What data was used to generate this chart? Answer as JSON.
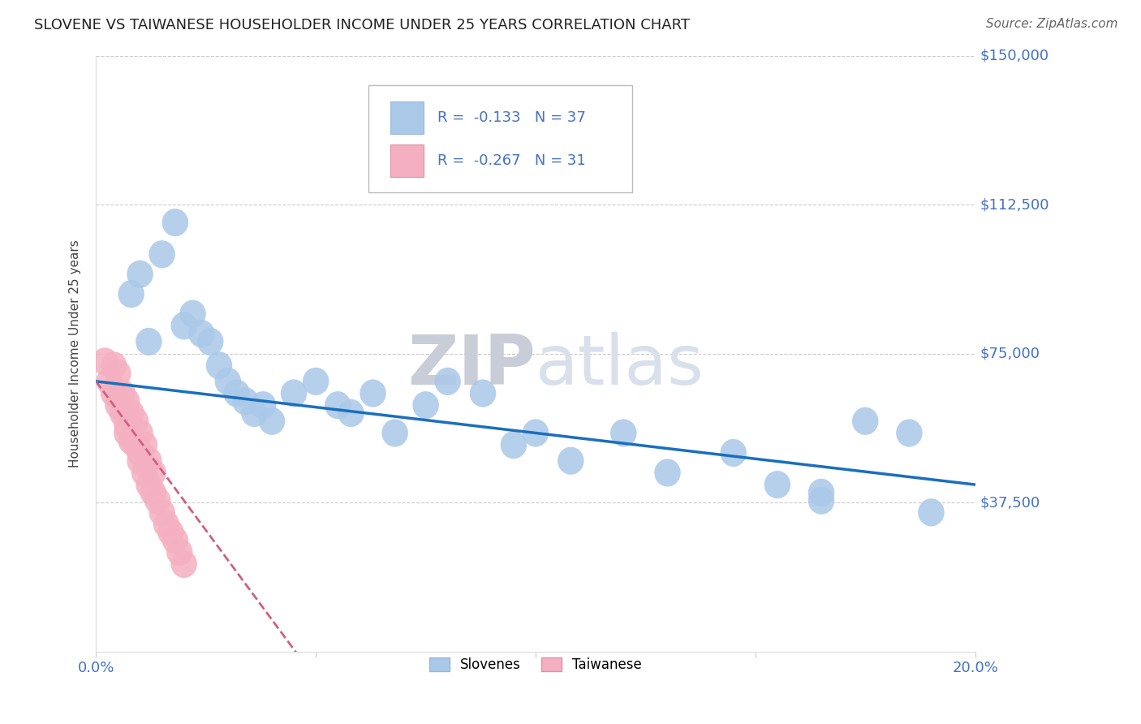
{
  "title": "SLOVENE VS TAIWANESE HOUSEHOLDER INCOME UNDER 25 YEARS CORRELATION CHART",
  "source": "Source: ZipAtlas.com",
  "ylabel": "Householder Income Under 25 years",
  "xmin": 0.0,
  "xmax": 0.2,
  "ymin": 0,
  "ymax": 150000,
  "ytick_vals": [
    0,
    37500,
    75000,
    112500,
    150000
  ],
  "ytick_labels": [
    "",
    "$37,500",
    "$75,000",
    "$112,500",
    "$150,000"
  ],
  "xtick_vals": [
    0.0,
    0.05,
    0.1,
    0.15,
    0.2
  ],
  "xtick_labels": [
    "0.0%",
    "",
    "",
    "",
    "20.0%"
  ],
  "legend_slovenes_label": "Slovenes",
  "legend_taiwanese_label": "Taiwanese",
  "slovene_R": -0.133,
  "slovene_N": 37,
  "taiwanese_R": -0.267,
  "taiwanese_N": 31,
  "slovene_color": "#aac8e8",
  "slovene_line_color": "#1a6fbd",
  "taiwanese_color": "#f4b0c0",
  "taiwanese_line_color": "#d06080",
  "blue_text_color": "#4472c4",
  "watermark_zip_color": "#d0d8e8",
  "watermark_atlas_color": "#c8d8e8",
  "slovene_line_intercept": 68000,
  "slovene_line_slope": -130000,
  "taiwanese_line_intercept": 68000,
  "taiwanese_line_slope": -1500000,
  "slovene_x": [
    0.008,
    0.01,
    0.012,
    0.015,
    0.018,
    0.02,
    0.022,
    0.024,
    0.026,
    0.028,
    0.03,
    0.032,
    0.034,
    0.036,
    0.038,
    0.04,
    0.045,
    0.05,
    0.055,
    0.058,
    0.063,
    0.068,
    0.075,
    0.08,
    0.088,
    0.095,
    0.1,
    0.108,
    0.12,
    0.13,
    0.145,
    0.155,
    0.165,
    0.175,
    0.185,
    0.165,
    0.19
  ],
  "slovene_y": [
    90000,
    95000,
    78000,
    100000,
    108000,
    82000,
    85000,
    80000,
    78000,
    72000,
    68000,
    65000,
    63000,
    60000,
    62000,
    58000,
    65000,
    68000,
    62000,
    60000,
    65000,
    55000,
    62000,
    68000,
    65000,
    52000,
    55000,
    48000,
    55000,
    45000,
    50000,
    42000,
    38000,
    58000,
    55000,
    40000,
    35000
  ],
  "taiwanese_x": [
    0.002,
    0.003,
    0.004,
    0.004,
    0.005,
    0.005,
    0.006,
    0.006,
    0.007,
    0.007,
    0.007,
    0.008,
    0.008,
    0.009,
    0.009,
    0.01,
    0.01,
    0.01,
    0.011,
    0.011,
    0.012,
    0.012,
    0.013,
    0.013,
    0.014,
    0.015,
    0.016,
    0.017,
    0.018,
    0.019,
    0.02
  ],
  "taiwanese_y": [
    73000,
    68000,
    65000,
    72000,
    70000,
    62000,
    65000,
    60000,
    63000,
    57000,
    55000,
    60000,
    53000,
    58000,
    52000,
    55000,
    50000,
    48000,
    52000,
    45000,
    48000,
    42000,
    45000,
    40000,
    38000,
    35000,
    32000,
    30000,
    28000,
    25000,
    22000
  ]
}
